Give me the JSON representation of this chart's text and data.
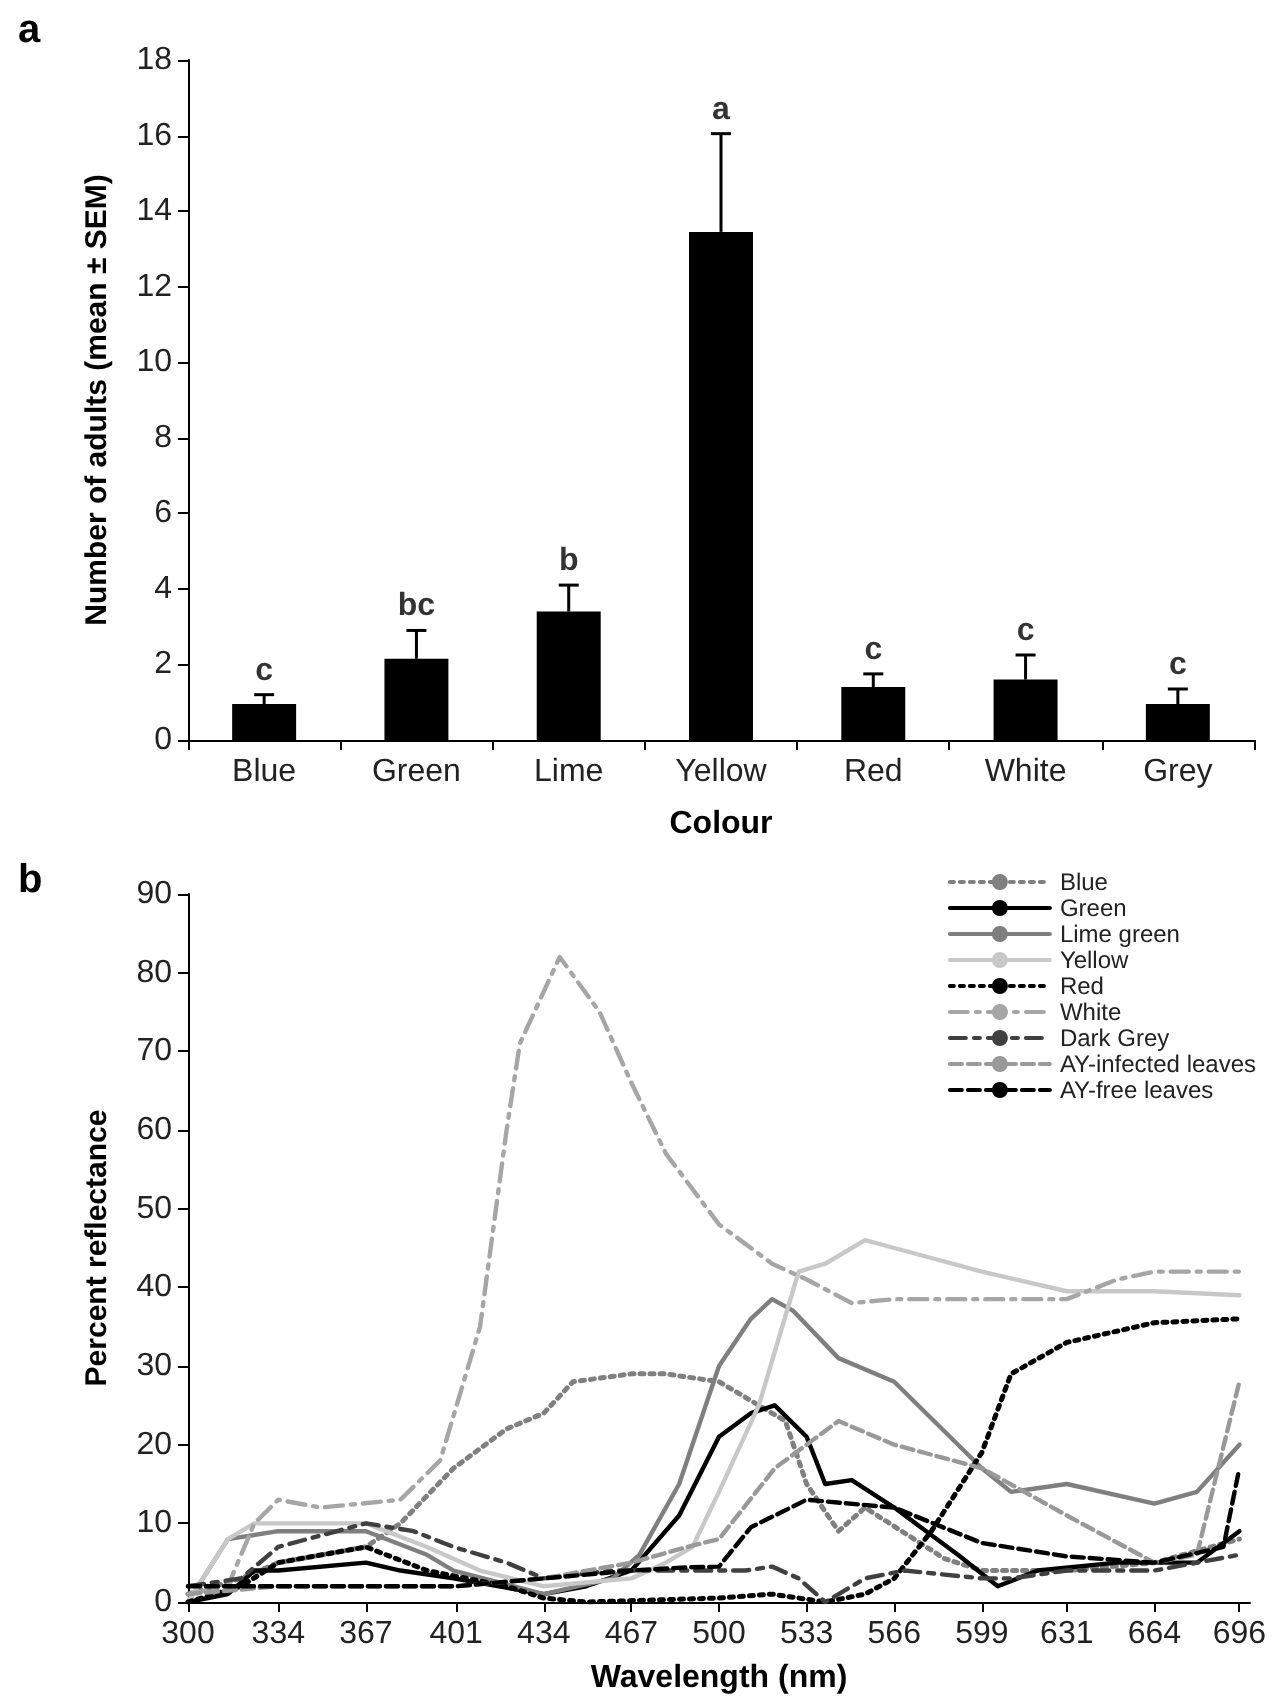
{
  "chart_data": [
    {
      "type": "bar",
      "title": "a",
      "xlabel": "Colour",
      "ylabel": "Number of adults (mean ± SEM)",
      "categories": [
        "Blue",
        "Green",
        "Lime",
        "Yellow",
        "Red",
        "White",
        "Grey"
      ],
      "values": [
        0.95,
        2.15,
        3.4,
        13.45,
        1.4,
        1.6,
        0.95
      ],
      "color": "#000000",
      "errors": [
        [
          0.95,
          1.2
        ],
        [
          2.15,
          2.9
        ],
        [
          3.4,
          4.1
        ],
        [
          13.45,
          16.05
        ],
        [
          1.4,
          1.75
        ],
        [
          1.6,
          2.25
        ],
        [
          0.95,
          1.35
        ]
      ],
      "ylim": [
        0,
        18
      ],
      "yticks": [
        0,
        2,
        4,
        6,
        8,
        10,
        12,
        14,
        16,
        18
      ],
      "grid": false,
      "annotations": [
        {
          "text": "c",
          "x": "Blue",
          "y": 1.2
        },
        {
          "text": "bc",
          "x": "Green",
          "y": 2.9
        },
        {
          "text": "b",
          "x": "Lime",
          "y": 4.1
        },
        {
          "text": "a",
          "x": "Yellow",
          "y": 16.05
        },
        {
          "text": "c",
          "x": "Red",
          "y": 1.75
        },
        {
          "text": "c",
          "x": "White",
          "y": 2.25
        },
        {
          "text": "c",
          "x": "Grey",
          "y": 1.35
        }
      ]
    },
    {
      "type": "line",
      "title": "b",
      "xlabel": "Wavelength (nm)",
      "ylabel": "Percent reflectance",
      "xlim": [
        300,
        700
      ],
      "xticks": [
        300,
        334,
        367,
        401,
        434,
        467,
        500,
        533,
        566,
        599,
        631,
        664,
        696
      ],
      "ylim": [
        0,
        90
      ],
      "yticks": [
        0,
        10,
        20,
        30,
        40,
        50,
        60,
        70,
        80,
        90
      ],
      "grid": false,
      "legend": "top right",
      "series": [
        {
          "name": "Blue",
          "color": "#808080",
          "line_style": "dotted",
          "x": [
            300,
            320,
            334,
            367,
            380,
            400,
            420,
            434,
            445,
            467,
            480,
            500,
            525,
            533,
            545,
            555,
            585,
            599,
            631,
            664,
            696
          ],
          "values": [
            1,
            3,
            5,
            7,
            10,
            17,
            22,
            24,
            28,
            29,
            29,
            28,
            23,
            15,
            9,
            12,
            5.5,
            4,
            4,
            5,
            8
          ]
        },
        {
          "name": "Green",
          "color": "#000000",
          "line_style": "solid",
          "x": [
            300,
            315,
            325,
            334,
            367,
            380,
            400,
            434,
            450,
            467,
            485,
            500,
            512,
            521,
            533,
            540,
            550,
            566,
            590,
            605,
            620,
            650,
            664,
            680,
            696
          ],
          "values": [
            0,
            1,
            4,
            4,
            5,
            4,
            3,
            1,
            2,
            4,
            11,
            21,
            24,
            25,
            21,
            15,
            15.5,
            12,
            6,
            2,
            4,
            5,
            5,
            5,
            9
          ]
        },
        {
          "name": "Lime green",
          "color": "#7f7f7f",
          "line_style": "solid",
          "x": [
            300,
            315,
            334,
            367,
            390,
            400,
            434,
            460,
            470,
            485,
            500,
            512,
            520,
            528,
            545,
            566,
            599,
            610,
            631,
            664,
            680,
            696
          ],
          "values": [
            0,
            8,
            9,
            9,
            6,
            4,
            1,
            3,
            6,
            15,
            30,
            36,
            38.5,
            37,
            31,
            28,
            17,
            14,
            15,
            12.5,
            14,
            20
          ]
        },
        {
          "name": "Yellow",
          "color": "#c8c8c8",
          "line_style": "solid",
          "x": [
            300,
            315,
            325,
            334,
            367,
            390,
            410,
            434,
            467,
            480,
            490,
            500,
            515,
            530,
            540,
            555,
            566,
            599,
            631,
            664,
            696
          ],
          "values": [
            0,
            8,
            10,
            10,
            10,
            7,
            4,
            2,
            3,
            5,
            7,
            14,
            25,
            42,
            43,
            46,
            45,
            42,
            39.5,
            39.5,
            39
          ]
        },
        {
          "name": "Red",
          "color": "#000000",
          "line_style": "dotted",
          "x": [
            300,
            320,
            334,
            367,
            390,
            420,
            434,
            450,
            500,
            520,
            540,
            555,
            566,
            580,
            599,
            610,
            631,
            664,
            696
          ],
          "values": [
            0,
            2,
            5,
            7,
            4,
            2,
            0.5,
            0,
            0.5,
            1,
            0,
            1,
            3,
            9,
            19,
            29,
            33,
            35.5,
            36
          ]
        },
        {
          "name": "White",
          "color": "#a6a6a6",
          "line_style": "dashdot",
          "x": [
            300,
            315,
            325,
            334,
            350,
            380,
            395,
            410,
            420,
            425,
            440,
            455,
            467,
            480,
            500,
            520,
            533,
            550,
            566,
            600,
            631,
            650,
            664,
            680,
            696
          ],
          "values": [
            1,
            2,
            10,
            13,
            12,
            13,
            18,
            35,
            60,
            71,
            82,
            75,
            66,
            57,
            48,
            43,
            41,
            38,
            38.5,
            38.5,
            38.5,
            41,
            42,
            42,
            42
          ]
        },
        {
          "name": "Dark Grey",
          "color": "#404040",
          "line_style": "longdash",
          "x": [
            300,
            320,
            334,
            367,
            385,
            400,
            420,
            434,
            460,
            480,
            500,
            510,
            520,
            530,
            540,
            555,
            570,
            599,
            610,
            631,
            664,
            696
          ],
          "values": [
            2,
            3,
            7,
            10,
            9,
            7,
            5,
            3,
            4,
            4,
            4,
            4,
            4.5,
            3,
            0,
            3,
            4,
            3,
            3,
            4,
            4,
            6
          ]
        },
        {
          "name": "AY-infected leaves",
          "color": "#999999",
          "line_style": "dashed",
          "x": [
            300,
            334,
            367,
            401,
            434,
            467,
            488,
            500,
            521,
            545,
            566,
            599,
            631,
            664,
            680,
            696
          ],
          "values": [
            1,
            2,
            2,
            2,
            3,
            5,
            7,
            8,
            17,
            23,
            20,
            17,
            11,
            5,
            6,
            28
          ]
        },
        {
          "name": "AY-free leaves",
          "color": "#000000",
          "line_style": "dashed",
          "x": [
            300,
            334,
            367,
            401,
            434,
            467,
            488,
            500,
            512,
            533,
            566,
            599,
            631,
            664,
            690,
            696
          ],
          "values": [
            2,
            2,
            2,
            2,
            3,
            4,
            4.4,
            4.5,
            9.5,
            13,
            12,
            7.5,
            5.8,
            5,
            7,
            17
          ]
        }
      ]
    }
  ]
}
